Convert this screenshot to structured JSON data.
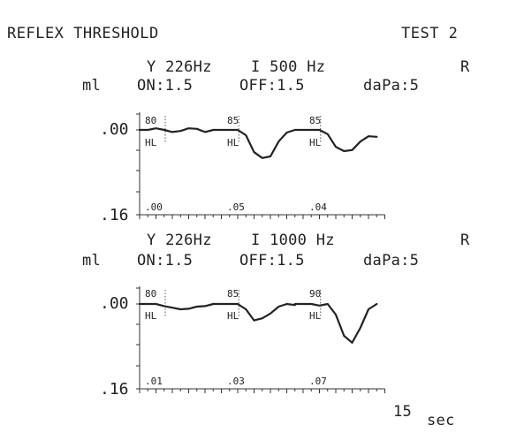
{
  "report": {
    "title": "REFLEX THRESHOLD",
    "test_label": "TEST 2",
    "x_unit": "sec",
    "x_end_label": "15"
  },
  "chart_data": [
    {
      "type": "line",
      "probe_line": "Y 226Hz",
      "stimulus": "I 500 Hz",
      "ear": "R",
      "ylabel": "ml",
      "on": "ON:1.5",
      "off": "OFF:1.5",
      "dapa": "daPa:5",
      "ytick_labels": [
        ".00",
        ".16"
      ],
      "ylim": [
        0,
        0.16
      ],
      "xlim": [
        0,
        15
      ],
      "x_ticks": [
        0,
        0.5,
        1,
        1.5,
        2,
        2.5,
        3,
        3.5,
        4,
        4.5,
        5,
        5.5,
        6,
        6.5,
        7,
        7.5,
        8,
        8.5,
        9,
        9.5,
        10,
        10.5,
        11,
        11.5,
        12,
        12.5,
        13,
        13.5,
        14,
        14.5,
        15
      ],
      "segments": [
        {
          "level": "80",
          "level_unit": "HL",
          "peak": ".00",
          "x": [
            0,
            0.5,
            1,
            1.5,
            2,
            2.5,
            3,
            3.5,
            4,
            4.5
          ],
          "y": [
            0,
            0,
            -0.003,
            0,
            0.004,
            0.002,
            -0.003,
            -0.002,
            0.004,
            0
          ]
        },
        {
          "level": "85",
          "level_unit": "HL",
          "peak": ".05",
          "x": [
            4.5,
            5,
            5.5,
            6,
            6.5,
            7,
            7.5,
            8,
            8.5,
            9,
            9.5
          ],
          "y": [
            0,
            0,
            0,
            0,
            0.01,
            0.042,
            0.053,
            0.05,
            0.022,
            0.005,
            0
          ]
        },
        {
          "level": "85",
          "level_unit": "HL",
          "peak": ".04",
          "x": [
            9.5,
            10,
            10.5,
            11,
            11.5,
            12,
            12.5,
            13,
            13.5,
            14,
            14.5
          ],
          "y": [
            0,
            0,
            0,
            0,
            0.008,
            0.032,
            0.04,
            0.038,
            0.022,
            0.012,
            0.013
          ]
        }
      ]
    },
    {
      "type": "line",
      "probe_line": "Y 226Hz",
      "stimulus": "I 1000 Hz",
      "ear": "R",
      "ylabel": "ml",
      "on": "ON:1.5",
      "off": "OFF:1.5",
      "dapa": "daPa:5",
      "ytick_labels": [
        ".00",
        ".16"
      ],
      "ylim": [
        0,
        0.16
      ],
      "xlim": [
        0,
        15
      ],
      "x_ticks": [
        0,
        0.5,
        1,
        1.5,
        2,
        2.5,
        3,
        3.5,
        4,
        4.5,
        5,
        5.5,
        6,
        6.5,
        7,
        7.5,
        8,
        8.5,
        9,
        9.5,
        10,
        10.5,
        11,
        11.5,
        12,
        12.5,
        13,
        13.5,
        14,
        14.5,
        15
      ],
      "segments": [
        {
          "level": "80",
          "level_unit": "HL",
          "peak": ".01",
          "x": [
            0,
            0.5,
            1,
            1.5,
            2,
            2.5,
            3,
            3.5,
            4,
            4.5
          ],
          "y": [
            0,
            0,
            0,
            0.004,
            0.007,
            0.01,
            0.009,
            0.005,
            0.004,
            0
          ]
        },
        {
          "level": "85",
          "level_unit": "HL",
          "peak": ".03",
          "x": [
            4.5,
            5,
            5.5,
            6,
            6.5,
            7,
            7.5,
            8,
            8.5,
            9,
            9.5
          ],
          "y": [
            0,
            0,
            0,
            0,
            0.01,
            0.031,
            0.027,
            0.018,
            0.005,
            0,
            0.002
          ]
        },
        {
          "level": "90",
          "level_unit": "HL",
          "peak": ".07",
          "x": [
            9.5,
            10,
            10.5,
            11,
            11.5,
            12,
            12.5,
            13,
            13.5,
            14,
            14.5
          ],
          "y": [
            0,
            0,
            0,
            0.003,
            0,
            0.02,
            0.06,
            0.073,
            0.045,
            0.01,
            0
          ]
        }
      ]
    }
  ]
}
